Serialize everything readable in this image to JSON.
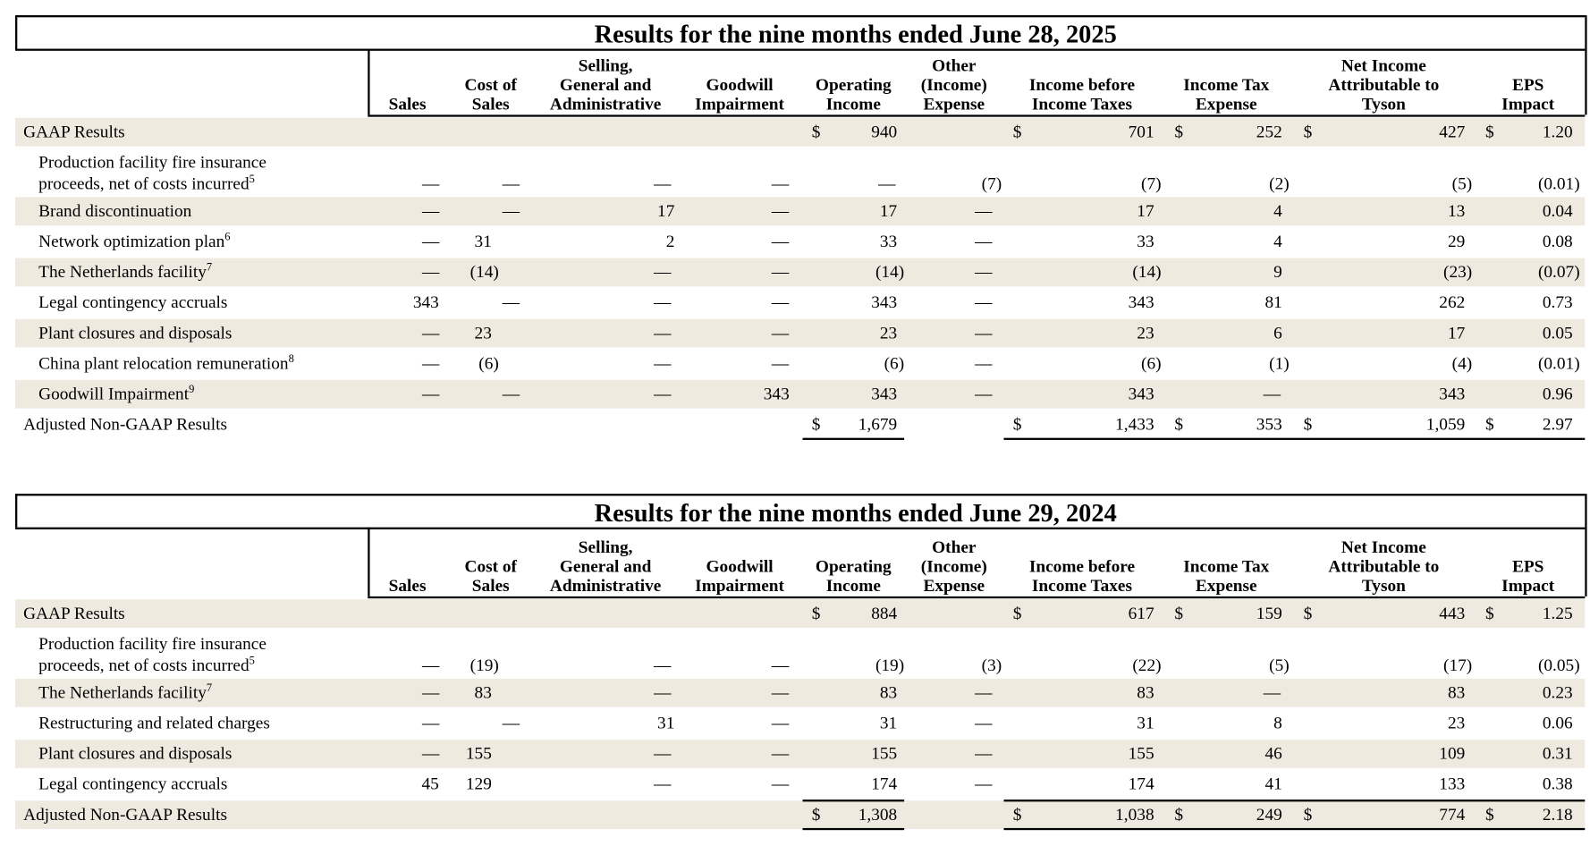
{
  "tables": [
    {
      "title": "Results for the nine months ended June 28, 2025",
      "headers": [
        [
          "Sales"
        ],
        [
          "Cost of",
          "Sales"
        ],
        [
          "Selling,",
          "General and",
          "Administrative"
        ],
        [
          "Goodwill",
          "Impairment"
        ],
        [
          "Operating",
          "Income"
        ],
        [
          "Other",
          "(Income)",
          "Expense"
        ],
        [
          "Income before",
          "Income Taxes"
        ],
        [
          "Income Tax",
          "Expense"
        ],
        [
          "Net Income",
          "Attributable to",
          "Tyson"
        ],
        [
          "EPS",
          "Impact"
        ]
      ],
      "rows": [
        {
          "label": [
            "GAAP Results"
          ],
          "cells": [
            null,
            null,
            null,
            null,
            {
              "symbol": "$",
              "value": "940"
            },
            null,
            {
              "symbol": "$",
              "value": "701"
            },
            {
              "symbol": "$",
              "value": "252"
            },
            {
              "symbol": "$",
              "value": "427"
            },
            {
              "symbol": "$",
              "value": "1.20"
            }
          ]
        },
        {
          "label": [
            "Production facility fire insurance",
            "proceeds, net of costs incurred"
          ],
          "note": "5",
          "cells": [
            "—",
            "—",
            "—",
            "—",
            "—",
            "(7)",
            "(7)",
            "(2)",
            "(5)",
            "(0.01)"
          ]
        },
        {
          "label": [
            "Brand discontinuation"
          ],
          "cells": [
            "—",
            "—",
            "17",
            "—",
            "17",
            "—",
            "17",
            "4",
            "13",
            "0.04"
          ]
        },
        {
          "label": [
            "Network optimization plan"
          ],
          "note": "6",
          "cells": [
            "—",
            "31",
            "2",
            "—",
            "33",
            "—",
            "33",
            "4",
            "29",
            "0.08"
          ]
        },
        {
          "label": [
            "The Netherlands facility"
          ],
          "note": "7",
          "cells": [
            "—",
            "(14)",
            "—",
            "—",
            "(14)",
            "—",
            "(14)",
            "9",
            "(23)",
            "(0.07)"
          ]
        },
        {
          "label": [
            "Legal contingency accruals"
          ],
          "cells": [
            "343",
            "—",
            "—",
            "—",
            "343",
            "—",
            "343",
            "81",
            "262",
            "0.73"
          ]
        },
        {
          "label": [
            "Plant closures and disposals"
          ],
          "cells": [
            "—",
            "23",
            "—",
            "—",
            "23",
            "—",
            "23",
            "6",
            "17",
            "0.05"
          ]
        },
        {
          "label": [
            "China plant relocation remuneration"
          ],
          "note": "8",
          "cells": [
            "—",
            "(6)",
            "—",
            "—",
            "(6)",
            "—",
            "(6)",
            "(1)",
            "(4)",
            "(0.01)"
          ]
        },
        {
          "label": [
            "Goodwill Impairment"
          ],
          "note": "9",
          "cells": [
            "—",
            "—",
            "—",
            "343",
            "343",
            "—",
            "343",
            "—",
            "343",
            "0.96"
          ]
        },
        {
          "label": [
            "Adjusted Non-GAAP Results"
          ],
          "cells": [
            null,
            null,
            null,
            null,
            {
              "symbol": "$",
              "value": "1,679"
            },
            null,
            {
              "symbol": "$",
              "value": "1,433"
            },
            {
              "symbol": "$",
              "value": "353"
            },
            {
              "symbol": "$",
              "value": "1,059"
            },
            {
              "symbol": "$",
              "value": "2.97"
            }
          ]
        }
      ]
    },
    {
      "title": "Results for the nine months ended June 29, 2024",
      "headers": [
        [
          "Sales"
        ],
        [
          "Cost of",
          "Sales"
        ],
        [
          "Selling,",
          "General and",
          "Administrative"
        ],
        [
          "Goodwill",
          "Impairment"
        ],
        [
          "Operating",
          "Income"
        ],
        [
          "Other",
          "(Income)",
          "Expense"
        ],
        [
          "Income before",
          "Income Taxes"
        ],
        [
          "Income Tax",
          "Expense"
        ],
        [
          "Net Income",
          "Attributable to",
          "Tyson"
        ],
        [
          "EPS",
          "Impact"
        ]
      ],
      "rows": [
        {
          "label": [
            "GAAP Results"
          ],
          "cells": [
            null,
            null,
            null,
            null,
            {
              "symbol": "$",
              "value": "884"
            },
            null,
            {
              "symbol": "$",
              "value": "617"
            },
            {
              "symbol": "$",
              "value": "159"
            },
            {
              "symbol": "$",
              "value": "443"
            },
            {
              "symbol": "$",
              "value": "1.25"
            }
          ]
        },
        {
          "label": [
            "Production facility fire insurance",
            "proceeds, net of costs incurred"
          ],
          "note": "5",
          "cells": [
            "—",
            "(19)",
            "—",
            "—",
            "(19)",
            "(3)",
            "(22)",
            "(5)",
            "(17)",
            "(0.05)"
          ]
        },
        {
          "label": [
            "The Netherlands facility"
          ],
          "note": "7",
          "cells": [
            "—",
            "83",
            "—",
            "—",
            "83",
            "—",
            "83",
            "—",
            "83",
            "0.23"
          ]
        },
        {
          "label": [
            "Restructuring and related charges"
          ],
          "cells": [
            "—",
            "—",
            "31",
            "—",
            "31",
            "—",
            "31",
            "8",
            "23",
            "0.06"
          ]
        },
        {
          "label": [
            "Plant closures and disposals"
          ],
          "cells": [
            "—",
            "155",
            "—",
            "—",
            "155",
            "—",
            "155",
            "46",
            "109",
            "0.31"
          ]
        },
        {
          "label": [
            "Legal contingency accruals"
          ],
          "cells": [
            "45",
            "129",
            "—",
            "—",
            "174",
            "—",
            "174",
            "41",
            "133",
            "0.38"
          ]
        },
        {
          "label": [
            "Adjusted Non-GAAP Results"
          ],
          "cells": [
            null,
            null,
            null,
            null,
            {
              "symbol": "$",
              "value": "1,308"
            },
            null,
            {
              "symbol": "$",
              "value": "1,038"
            },
            {
              "symbol": "$",
              "value": "249"
            },
            {
              "symbol": "$",
              "value": "774"
            },
            {
              "symbol": "$",
              "value": "2.18"
            }
          ]
        }
      ]
    }
  ]
}
